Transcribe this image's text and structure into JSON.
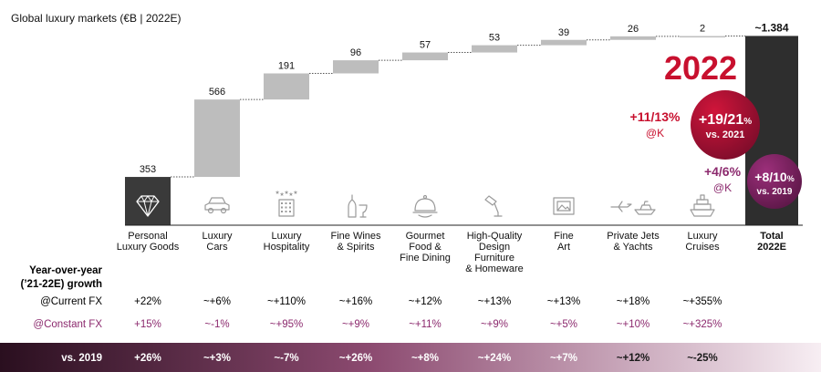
{
  "chart_data": {
    "type": "bar",
    "subtype": "waterfall",
    "title": "Global luxury markets (€B | 2022E)",
    "categories": [
      [
        "Personal",
        "Luxury Goods"
      ],
      [
        "Luxury",
        "Cars"
      ],
      [
        "Luxury",
        "Hospitality"
      ],
      [
        "Fine Wines",
        "& Spirits"
      ],
      [
        "Gourmet",
        "Food &",
        "Fine Dining"
      ],
      [
        "High-Quality",
        "Design",
        "Furniture",
        "& Homeware"
      ],
      [
        "Fine",
        "Art"
      ],
      [
        "Private Jets",
        "& Yachts"
      ],
      [
        "Luxury",
        "Cruises"
      ],
      [
        "Total",
        "2022E"
      ]
    ],
    "values": [
      353,
      566,
      191,
      96,
      57,
      53,
      39,
      26,
      2,
      1384
    ],
    "value_labels": [
      "353",
      "566",
      "191",
      "96",
      "57",
      "53",
      "39",
      "26",
      "2",
      "~1.384"
    ],
    "icons": [
      "diamond-icon",
      "car-icon",
      "hotel-icon",
      "wine-bottle-icon",
      "cloche-icon",
      "lamp-icon",
      "picture-frame-icon",
      "plane-yacht-icon",
      "cruise-ship-icon",
      ""
    ],
    "colors": {
      "first_bar": "#3a3a3a",
      "middle_bars": "#bdbdbd",
      "total_bar": "#2e2e2e",
      "accent_red": "#c8102e",
      "accent_purple": "#8c2a6e",
      "constant_fx_text": "#8c2a6e",
      "footer_gradient_start": "#2a0f1f",
      "footer_gradient_end": "#f7eef3"
    },
    "growth": {
      "header": [
        "Year-over-year",
        "(’21-22E) growth"
      ],
      "current_fx_label": "@Current FX",
      "current_fx": [
        "+22%",
        "~+6%",
        "~+110%",
        "~+16%",
        "~+12%",
        "~+13%",
        "~+13%",
        "~+18%",
        "~+355%"
      ],
      "constant_fx_label": "@Constant FX",
      "constant_fx": [
        "+15%",
        "~-1%",
        "~+95%",
        "~+9%",
        "~+11%",
        "~+9%",
        "~+5%",
        "~+10%",
        "~+325%"
      ],
      "vs2019_label": "vs. 2019",
      "vs2019": [
        "+26%",
        "~+3%",
        "~-7%",
        "~+26%",
        "~+8%",
        "~+24%",
        "~+7%",
        "~+12%",
        "~-25%"
      ]
    },
    "annotations": {
      "year": "2022",
      "vs2021_current": "+11/13%",
      "vs2021_current_sub": "@K",
      "vs2021_circle_value": "+19/21",
      "vs2021_circle_pct": "%",
      "vs2021_circle_sub": "vs. 2021",
      "vs2019_current": "+4/6%",
      "vs2019_current_sub": "@K",
      "vs2019_circle_value": "+8/10",
      "vs2019_circle_pct": "%",
      "vs2019_circle_sub": "vs. 2019"
    }
  }
}
